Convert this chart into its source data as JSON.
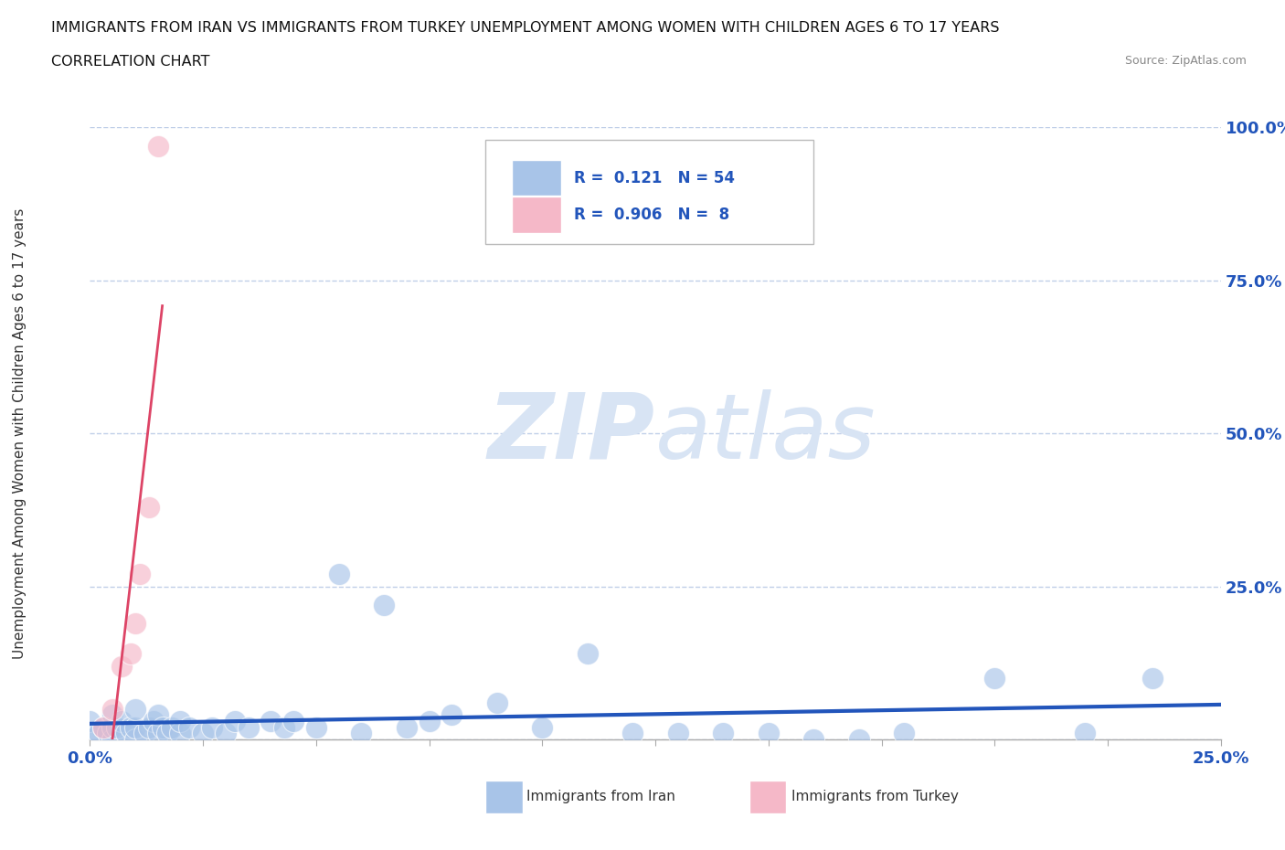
{
  "title_line1": "IMMIGRANTS FROM IRAN VS IMMIGRANTS FROM TURKEY UNEMPLOYMENT AMONG WOMEN WITH CHILDREN AGES 6 TO 17 YEARS",
  "title_line2": "CORRELATION CHART",
  "source": "Source: ZipAtlas.com",
  "ylabel": "Unemployment Among Women with Children Ages 6 to 17 years",
  "xlim": [
    0.0,
    0.25
  ],
  "ylim": [
    0.0,
    1.0
  ],
  "xticks": [
    0.0,
    0.025,
    0.05,
    0.075,
    0.1,
    0.125,
    0.15,
    0.175,
    0.2,
    0.225,
    0.25
  ],
  "xticklabels_show": {
    "0.0": "0.0%",
    "0.25": "25.0%"
  },
  "yticks": [
    0.0,
    0.25,
    0.5,
    0.75,
    1.0
  ],
  "yticklabels": [
    "",
    "25.0%",
    "50.0%",
    "75.0%",
    "100.0%"
  ],
  "iran_R": 0.121,
  "iran_N": 54,
  "turkey_R": 0.906,
  "turkey_N": 8,
  "iran_color": "#a8c4e8",
  "turkey_color": "#f5b8c8",
  "iran_line_color": "#2255bb",
  "turkey_line_color": "#dd4466",
  "iran_scatter_x": [
    0.0,
    0.0,
    0.002,
    0.003,
    0.004,
    0.005,
    0.005,
    0.005,
    0.006,
    0.007,
    0.008,
    0.009,
    0.01,
    0.01,
    0.01,
    0.012,
    0.013,
    0.014,
    0.015,
    0.015,
    0.016,
    0.017,
    0.018,
    0.02,
    0.02,
    0.022,
    0.025,
    0.027,
    0.03,
    0.032,
    0.035,
    0.04,
    0.043,
    0.045,
    0.05,
    0.055,
    0.06,
    0.065,
    0.07,
    0.075,
    0.08,
    0.09,
    0.1,
    0.11,
    0.12,
    0.13,
    0.14,
    0.15,
    0.16,
    0.17,
    0.18,
    0.2,
    0.22,
    0.235
  ],
  "iran_scatter_y": [
    0.01,
    0.03,
    0.01,
    0.02,
    0.01,
    0.0,
    0.02,
    0.04,
    0.02,
    0.03,
    0.01,
    0.02,
    0.0,
    0.02,
    0.05,
    0.01,
    0.02,
    0.03,
    0.01,
    0.04,
    0.02,
    0.01,
    0.02,
    0.01,
    0.03,
    0.02,
    0.01,
    0.02,
    0.01,
    0.03,
    0.02,
    0.03,
    0.02,
    0.03,
    0.02,
    0.27,
    0.01,
    0.22,
    0.02,
    0.03,
    0.04,
    0.06,
    0.02,
    0.14,
    0.01,
    0.01,
    0.01,
    0.01,
    0.0,
    0.0,
    0.01,
    0.1,
    0.01,
    0.1
  ],
  "turkey_scatter_x": [
    0.003,
    0.005,
    0.007,
    0.009,
    0.01,
    0.011,
    0.013,
    0.015
  ],
  "turkey_scatter_y": [
    0.02,
    0.05,
    0.12,
    0.14,
    0.19,
    0.27,
    0.38,
    0.97
  ],
  "background_color": "#ffffff",
  "grid_color": "#c0cfe8",
  "watermark_color": "#d8e4f4",
  "tick_label_color": "#2255bb"
}
